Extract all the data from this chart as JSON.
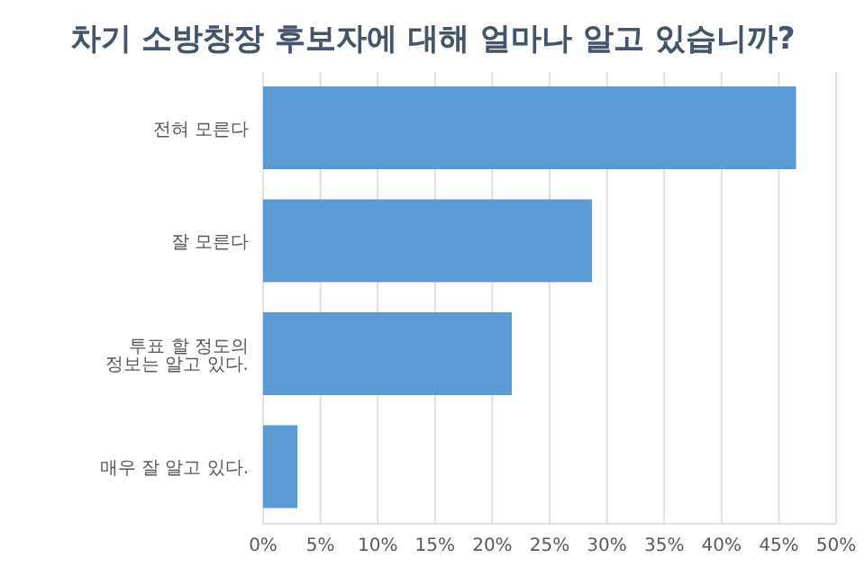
{
  "chart_data": {
    "type": "bar",
    "orientation": "horizontal",
    "title": "차기 소방창장 후보자에 대해 얼마나 알고 있습니까?",
    "categories": [
      "전혀 모른다",
      "잘 모른다",
      "투표 할 정도의 정보는 알고 있다.",
      "매우 잘 알고 있다."
    ],
    "values": [
      46.5,
      28.7,
      21.7,
      3.0
    ],
    "color": "#5b9bd5",
    "xlim": [
      0,
      50
    ],
    "xticks": [
      {
        "value": 0,
        "label": "0%"
      },
      {
        "value": 5,
        "label": "5%"
      },
      {
        "value": 10,
        "label": "10%"
      },
      {
        "value": 15,
        "label": "15%"
      },
      {
        "value": 20,
        "label": "20%"
      },
      {
        "value": 25,
        "label": "25%"
      },
      {
        "value": 30,
        "label": "30%"
      },
      {
        "value": 35,
        "label": "35%"
      },
      {
        "value": 40,
        "label": "40%"
      },
      {
        "value": 45,
        "label": "45%"
      },
      {
        "value": 50,
        "label": "50%"
      }
    ],
    "grid": "x",
    "legend": false
  }
}
